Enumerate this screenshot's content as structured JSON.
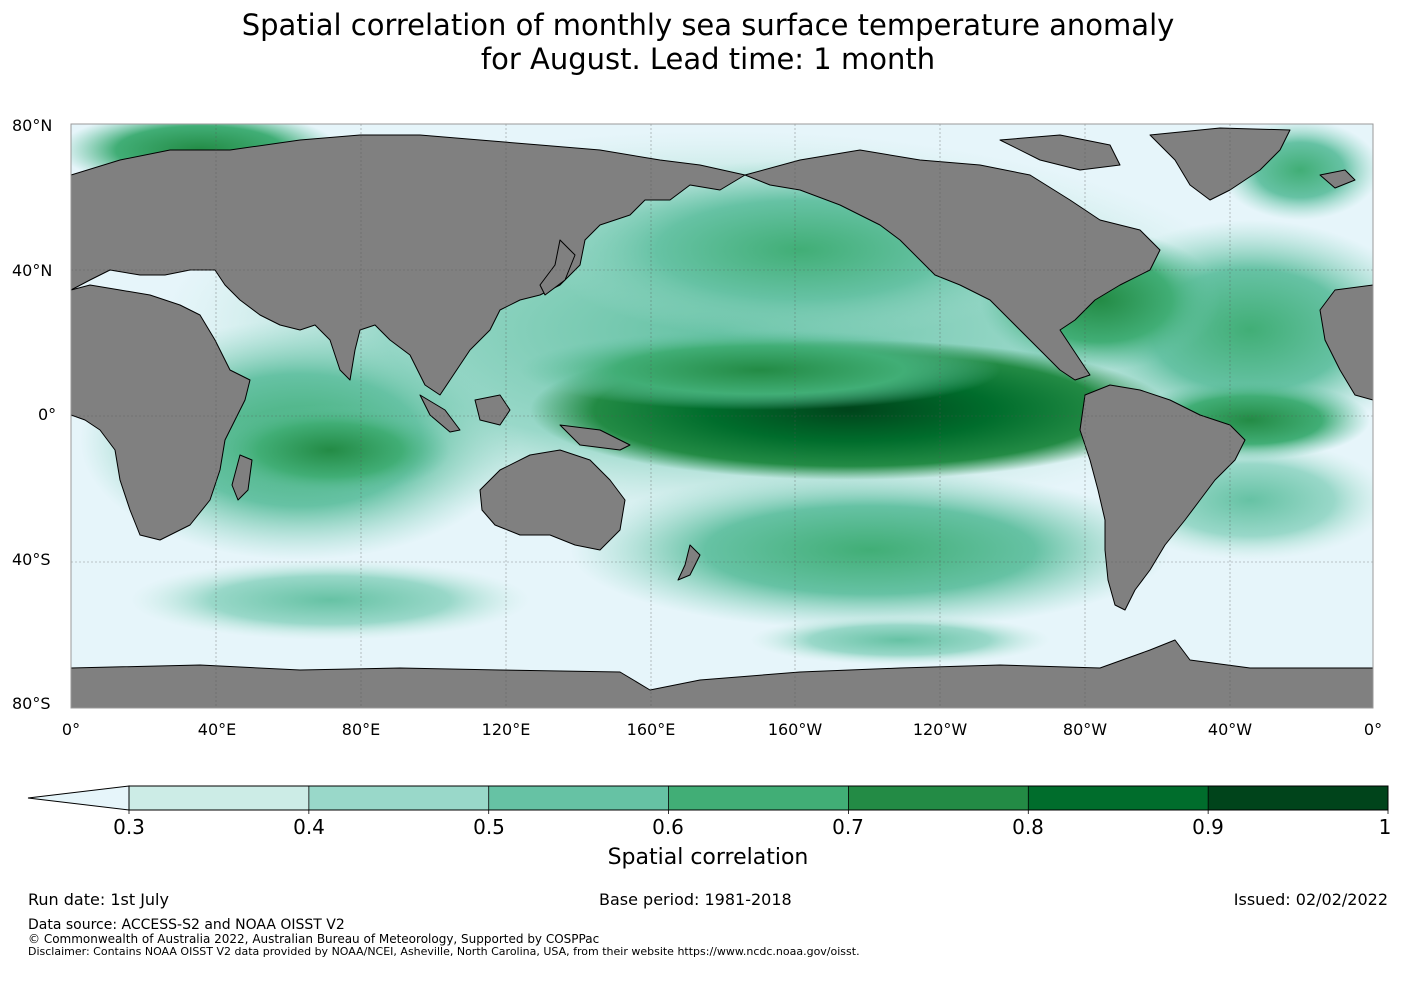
{
  "title_lines": [
    "Spatial correlation of monthly sea surface temperature anomaly",
    "for August. Lead time: 1 month"
  ],
  "lat_labels": [
    "80°N",
    "40°N",
    "0°",
    "40°S",
    "80°S"
  ],
  "lon_labels": [
    "0°",
    "40°E",
    "80°E",
    "120°E",
    "160°E",
    "160°W",
    "120°W",
    "80°W",
    "40°W",
    "0°"
  ],
  "colorbar": {
    "label": "Spatial correlation",
    "ticks": [
      "0.3",
      "0.4",
      "0.5",
      "0.6",
      "0.7",
      "0.8",
      "0.9",
      "1"
    ],
    "under_color": "#e6f5fa",
    "colors": [
      "#ccece6",
      "#99d8c9",
      "#66c2a4",
      "#41ae76",
      "#238b45",
      "#006d2c",
      "#00441b"
    ]
  },
  "land_color": "#808080",
  "ocean_base_color": "#e6f5fa",
  "footer": {
    "run_date": "Run date: 1st July",
    "base_period": "Base period: 1981-2018",
    "issued": "Issued: 02/02/2022",
    "data_source": "Data source: ACCESS-S2 and NOAA OISST V2",
    "copyright": "© Commonwealth of Australia 2022, Australian Bureau of Meteorology, Supported by COSPPac",
    "disclaimer": "Disclaimer: Contains NOAA OISST V2 data provided by NOAA/NCEI, Asheville, North Carolina, USA, from their website https://www.ncdc.noaa.gov/oisst."
  }
}
